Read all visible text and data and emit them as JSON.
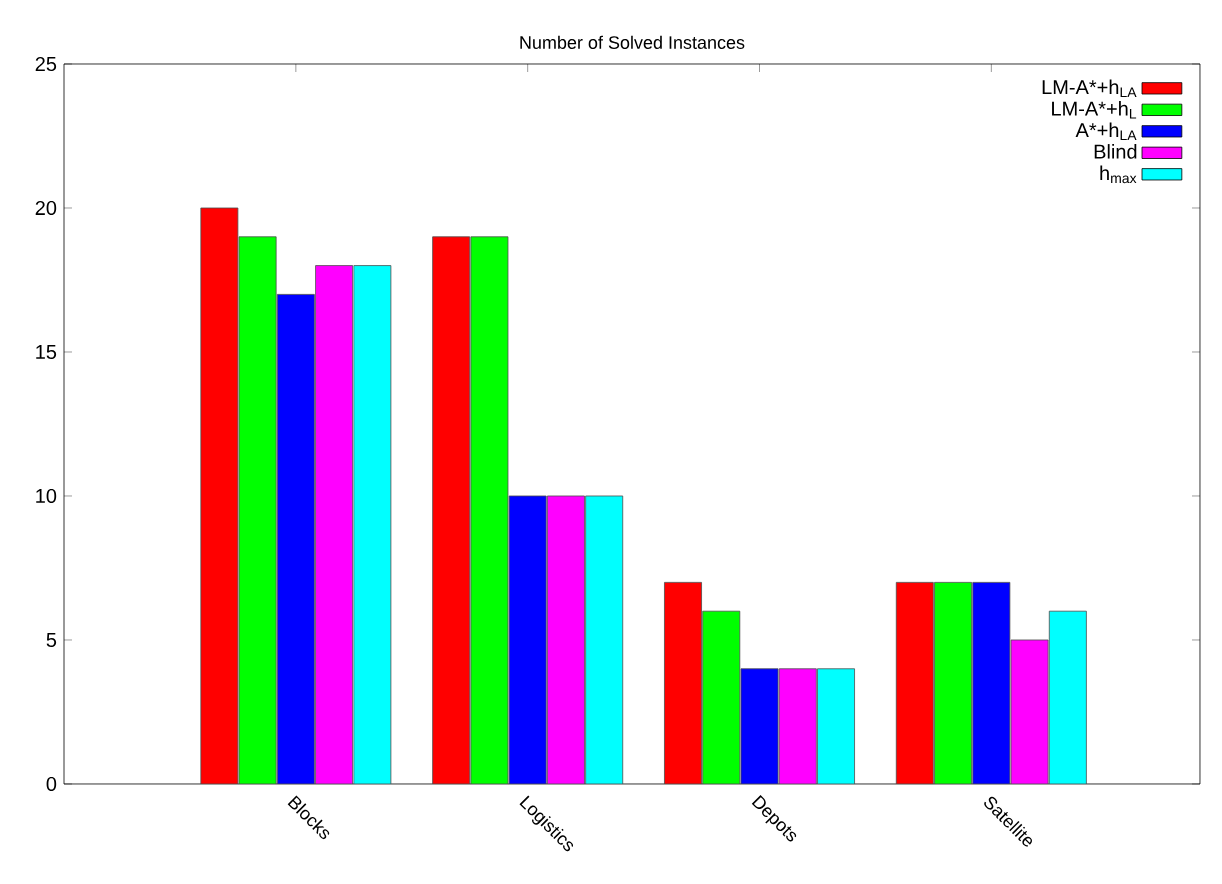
{
  "chart_data": {
    "type": "bar",
    "title": "Number of Solved Instances",
    "categories": [
      "Blocks",
      "Logistics",
      "Depots",
      "Satellite"
    ],
    "series": [
      {
        "name": "LM-A*+h$_{LA}$",
        "color": "#ff0000",
        "values": [
          20,
          19,
          7,
          7
        ]
      },
      {
        "name": "LM-A*+h$_{L}$",
        "color": "#00ff00",
        "values": [
          19,
          19,
          6,
          7
        ]
      },
      {
        "name": "A*+h$_{LA}$",
        "color": "#0000ff",
        "values": [
          17,
          10,
          4,
          7
        ]
      },
      {
        "name": "Blind",
        "color": "#ff00ff",
        "values": [
          18,
          10,
          4,
          5
        ]
      },
      {
        "name": "h$_{max}$",
        "color": "#00ffff",
        "values": [
          18,
          10,
          4,
          6
        ]
      }
    ],
    "ylim": [
      0,
      25
    ],
    "yticks": [
      0,
      5,
      10,
      15,
      20,
      25
    ],
    "legend": "top right"
  }
}
